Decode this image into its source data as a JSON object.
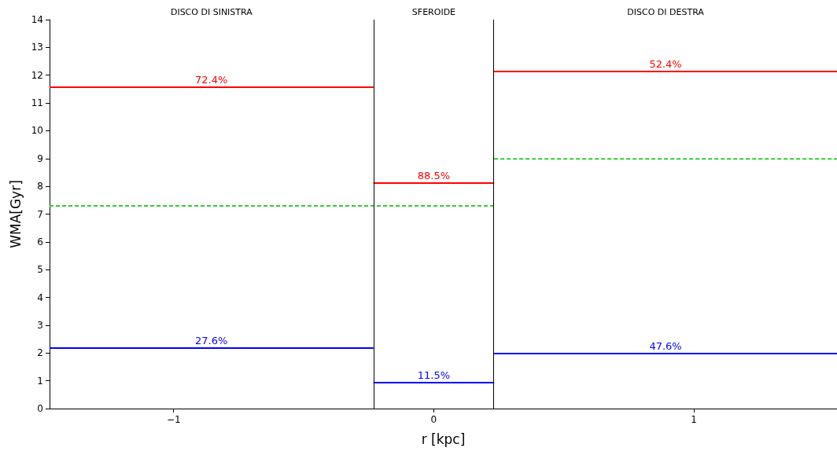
{
  "chart_data": {
    "type": "line",
    "xlabel": "r [kpc]",
    "ylabel": "WMA[Gyr]",
    "xlim": [
      -1.477,
      1.55
    ],
    "xticks": [
      {
        "value": -1,
        "label": "−1"
      },
      0,
      1
    ],
    "ylim": [
      0,
      14
    ],
    "yticks": [
      0,
      1,
      2,
      3,
      4,
      5,
      6,
      7,
      8,
      9,
      10,
      11,
      12,
      13,
      14
    ],
    "grid": false,
    "marker": "none",
    "series": [
      {
        "color": "#ff0000",
        "x": [
          -1.477,
          -0.232
        ],
        "values": [
          11.57,
          11.57
        ]
      },
      {
        "color": "#ff0000",
        "x": [
          -0.232,
          0.232
        ],
        "values": [
          8.12,
          8.12
        ]
      },
      {
        "color": "#ff0000",
        "x": [
          0.232,
          1.55
        ],
        "values": [
          12.13,
          12.13
        ]
      },
      {
        "color": "#0000ff",
        "x": [
          -1.477,
          -0.232
        ],
        "values": [
          2.18,
          2.18
        ]
      },
      {
        "color": "#0000ff",
        "x": [
          -0.232,
          0.232
        ],
        "values": [
          0.93,
          0.93
        ]
      },
      {
        "color": "#0000ff",
        "x": [
          0.232,
          1.55
        ],
        "values": [
          1.98,
          1.98
        ]
      },
      {
        "color": "#33cc33",
        "x": [
          -1.477,
          0.232
        ],
        "values": [
          7.3,
          7.3
        ],
        "line_style": "dashed"
      },
      {
        "color": "#33cc33",
        "x": [
          0.232,
          1.55
        ],
        "values": [
          8.99,
          8.99
        ],
        "line_style": "dashed"
      }
    ],
    "ref_lines": [
      {
        "axis": "x",
        "value": -0.232,
        "color": "#000000"
      },
      {
        "axis": "x",
        "value": 0.232,
        "color": "#000000"
      }
    ],
    "annotations": [
      "DISCO DI SINISTRA",
      "SFEROIDE",
      "DISCO DI DESTRA",
      {
        "text": "72.4%",
        "x": -0.855,
        "y": 11.57
      },
      {
        "text": "88.5%",
        "x": 0,
        "y": 8.12
      },
      {
        "text": "52.4%",
        "x": 0.891,
        "y": 12.13
      },
      {
        "text": "27.6%",
        "x": -0.855,
        "y": 2.18
      },
      {
        "text": "11.5%",
        "x": 0,
        "y": 0.93
      },
      {
        "text": "47.6%",
        "x": 0.891,
        "y": 1.98
      }
    ]
  }
}
